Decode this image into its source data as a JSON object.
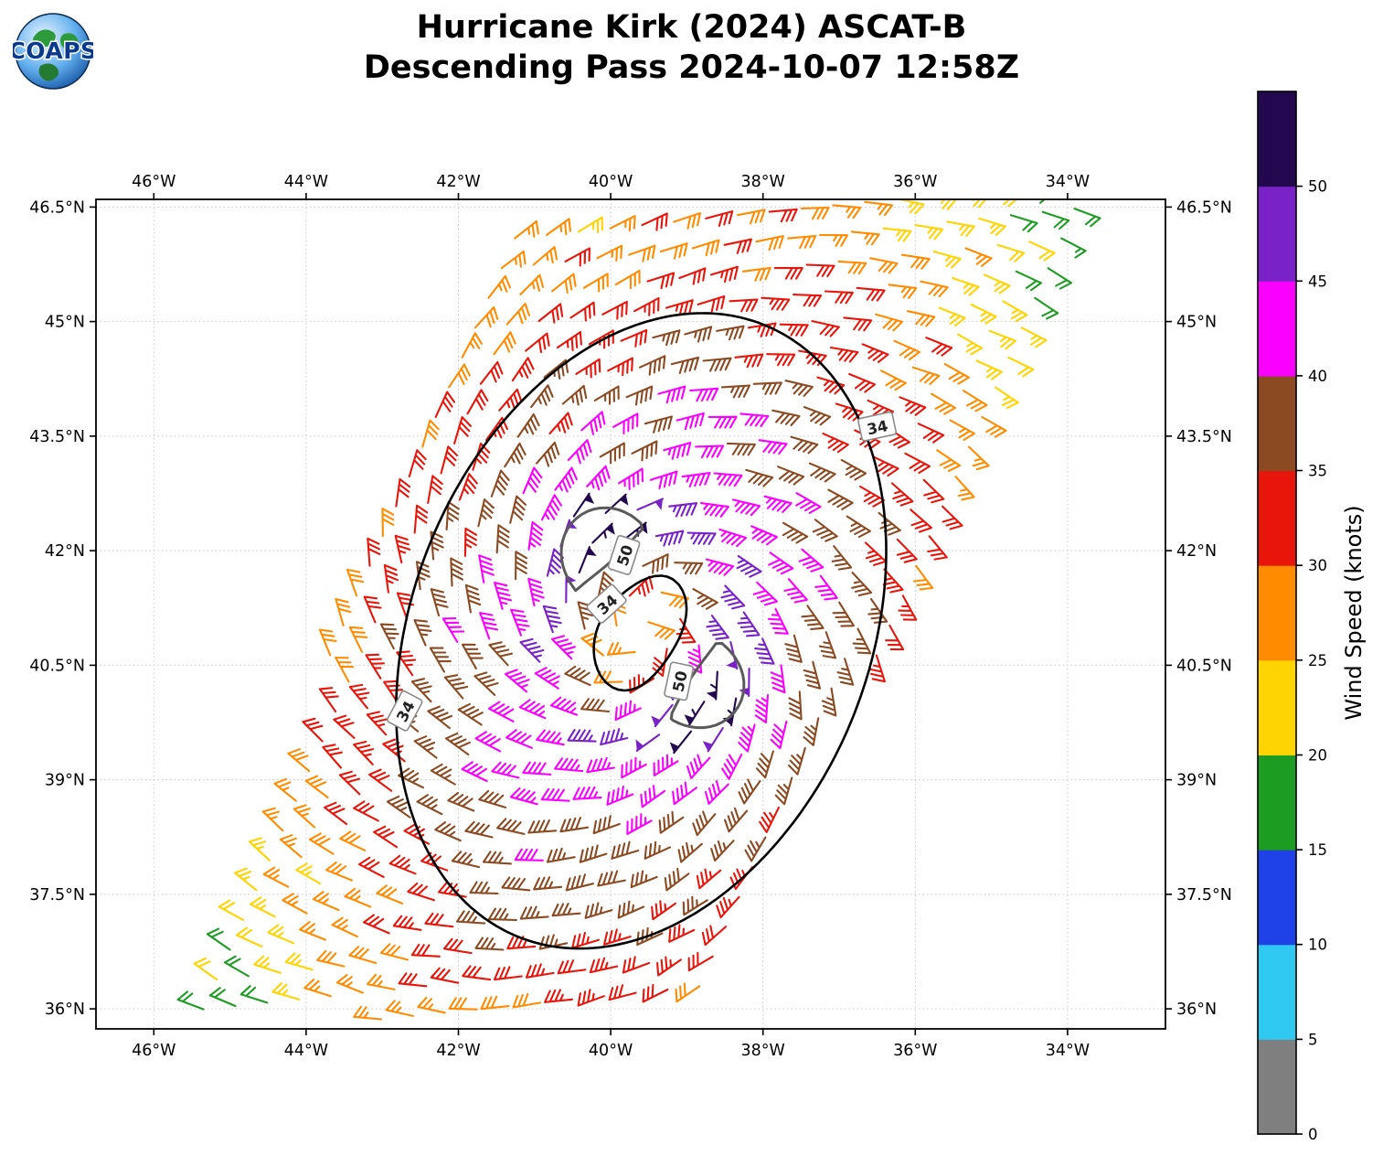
{
  "title": {
    "line1": "Hurricane Kirk (2024) ASCAT-B",
    "line2": "Descending Pass 2024-10-07 12:58Z"
  },
  "logo": {
    "text": "COAPS"
  },
  "axes": {
    "lon_ticks": [
      {
        "label": "46°W",
        "lon": -46
      },
      {
        "label": "44°W",
        "lon": -44
      },
      {
        "label": "42°W",
        "lon": -42
      },
      {
        "label": "40°W",
        "lon": -40
      },
      {
        "label": "38°W",
        "lon": -38
      },
      {
        "label": "36°W",
        "lon": -36
      },
      {
        "label": "34°W",
        "lon": -34
      }
    ],
    "lat_ticks": [
      {
        "label": "46.5°N",
        "lat": 46.5
      },
      {
        "label": "45°N",
        "lat": 45
      },
      {
        "label": "43.5°N",
        "lat": 43.5
      },
      {
        "label": "42°N",
        "lat": 42
      },
      {
        "label": "40.5°N",
        "lat": 40.5
      },
      {
        "label": "39°N",
        "lat": 39
      },
      {
        "label": "37.5°N",
        "lat": 37.5
      },
      {
        "label": "36°N",
        "lat": 36
      }
    ]
  },
  "colorbar": {
    "label": "Wind Speed (knots)",
    "tick_labels": [
      "0",
      "5",
      "10",
      "15",
      "20",
      "25",
      "30",
      "35",
      "40",
      "45",
      "50"
    ],
    "segment_colors_bottom_to_top": [
      "#7f7f7f",
      "#2fc8f0",
      "#1e41e8",
      "#1d9c22",
      "#ffd400",
      "#ff8c00",
      "#e8150b",
      "#8b4a21",
      "#fa00ff",
      "#7922c8",
      "#23084f"
    ]
  },
  "contour_labels": [
    {
      "text": "34",
      "lon": -36.5,
      "lat": 43.62,
      "rot": -12
    },
    {
      "text": "34",
      "lon": -40.05,
      "lat": 41.3,
      "rot": -42
    },
    {
      "text": "34",
      "lon": -42.7,
      "lat": 39.9,
      "rot": -62
    },
    {
      "text": "50",
      "lon": -39.82,
      "lat": 41.94,
      "rot": -72
    },
    {
      "text": "50",
      "lon": -39.1,
      "lat": 40.29,
      "rot": -78
    }
  ],
  "chart_data": {
    "type": "wind-barb-map",
    "storm": "Hurricane Kirk (2024)",
    "satellite": "ASCAT-B",
    "pass": "Descending",
    "datetime_utc": "2024-10-07 12:58Z",
    "units": "knots",
    "lon_range": [
      -46.76,
      -32.72
    ],
    "lat_range": [
      35.74,
      46.6
    ],
    "speed_bin_edges_kt": [
      0,
      5,
      10,
      15,
      20,
      25,
      30,
      35,
      40,
      45,
      50
    ],
    "contour_levels_kt": [
      34,
      50
    ],
    "contour_colors": [
      "#000000",
      "#5a5a5a"
    ],
    "storm_center": {
      "lon": -39.6,
      "lat": 40.95
    },
    "swath": {
      "left_edge": {
        "lon_at_36N": -45.5,
        "dlon_dlat": 0.384
      },
      "right_edge": {
        "lon_at_36N": -38.81,
        "dlon_dlat": 0.505
      }
    },
    "wind_field_model": {
      "ellipse_axis_dir": [
        0.3746,
        0.9272
      ],
      "ellipse_scale_deg": {
        "along": 1.8,
        "cross": 1.25
      },
      "eye_radius_deg": 0.28,
      "eye_speed_kt": 27,
      "max_ring_radius_deg": 0.8,
      "max_speed_kt": 46,
      "decay_kt_per_deg": 7.5,
      "min_speed_kt": 13,
      "inflow_angle_deg": 22,
      "maxima": [
        {
          "lon": -40.2,
          "lat": 42.1,
          "amp_kt": 10,
          "sigma_deg": 0.5
        },
        {
          "lon": -38.65,
          "lat": 40.15,
          "amp_kt": 10,
          "sigma_deg": 0.5
        }
      ]
    },
    "barb_grid": {
      "row_lat_step_deg": 0.39,
      "col_step_deg": 0.42,
      "row_dir_lonlat": [
        0.995,
        0.103
      ],
      "first_row_lat": 35.95,
      "rows": 28,
      "cols_half": 10
    }
  }
}
